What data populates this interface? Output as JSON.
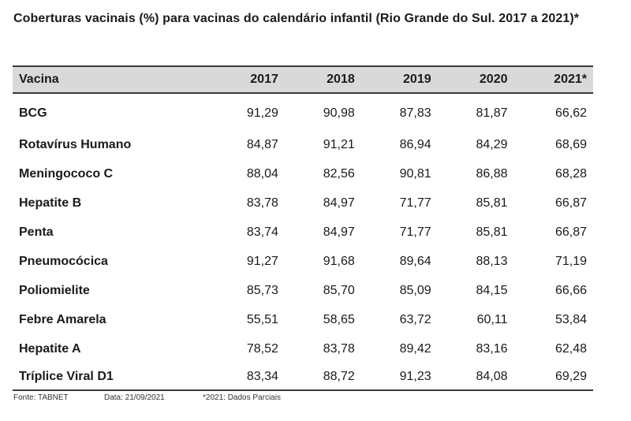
{
  "title": "Coberturas vacinais (%) para vacinas do calendário infantil (Rio Grande do Sul. 2017 a 2021)*",
  "table": {
    "header": [
      "Vacina",
      "2017",
      "2018",
      "2019",
      "2020",
      "2021*"
    ],
    "rows": [
      [
        "BCG",
        "91,29",
        "90,98",
        "87,83",
        "81,87",
        "66,62"
      ],
      [
        "Rotavírus Humano",
        "84,87",
        "91,21",
        "86,94",
        "84,29",
        "68,69"
      ],
      [
        "Meningococo C",
        "88,04",
        "82,56",
        "90,81",
        "86,88",
        "68,28"
      ],
      [
        "Hepatite B",
        "83,78",
        "84,97",
        "71,77",
        "85,81",
        "66,87"
      ],
      [
        "Penta",
        "83,74",
        "84,97",
        "71,77",
        "85,81",
        "66,87"
      ],
      [
        "Pneumocócica",
        "91,27",
        "91,68",
        "89,64",
        "88,13",
        "71,19"
      ],
      [
        "Poliomielite",
        "85,73",
        "85,70",
        "85,09",
        "84,15",
        "66,66"
      ],
      [
        "Febre Amarela",
        "55,51",
        "58,65",
        "63,72",
        "60,11",
        "53,84"
      ],
      [
        "Hepatite A",
        "78,52",
        "83,78",
        "89,42",
        "83,16",
        "62,48"
      ],
      [
        "Tríplice Viral D1",
        "83,34",
        "88,72",
        "91,23",
        "84,08",
        "69,29"
      ]
    ]
  },
  "footer": {
    "source": "Fonte: TABNET",
    "date": "Data: 21/09/2021",
    "note": "*2021: Dados Parciais"
  }
}
